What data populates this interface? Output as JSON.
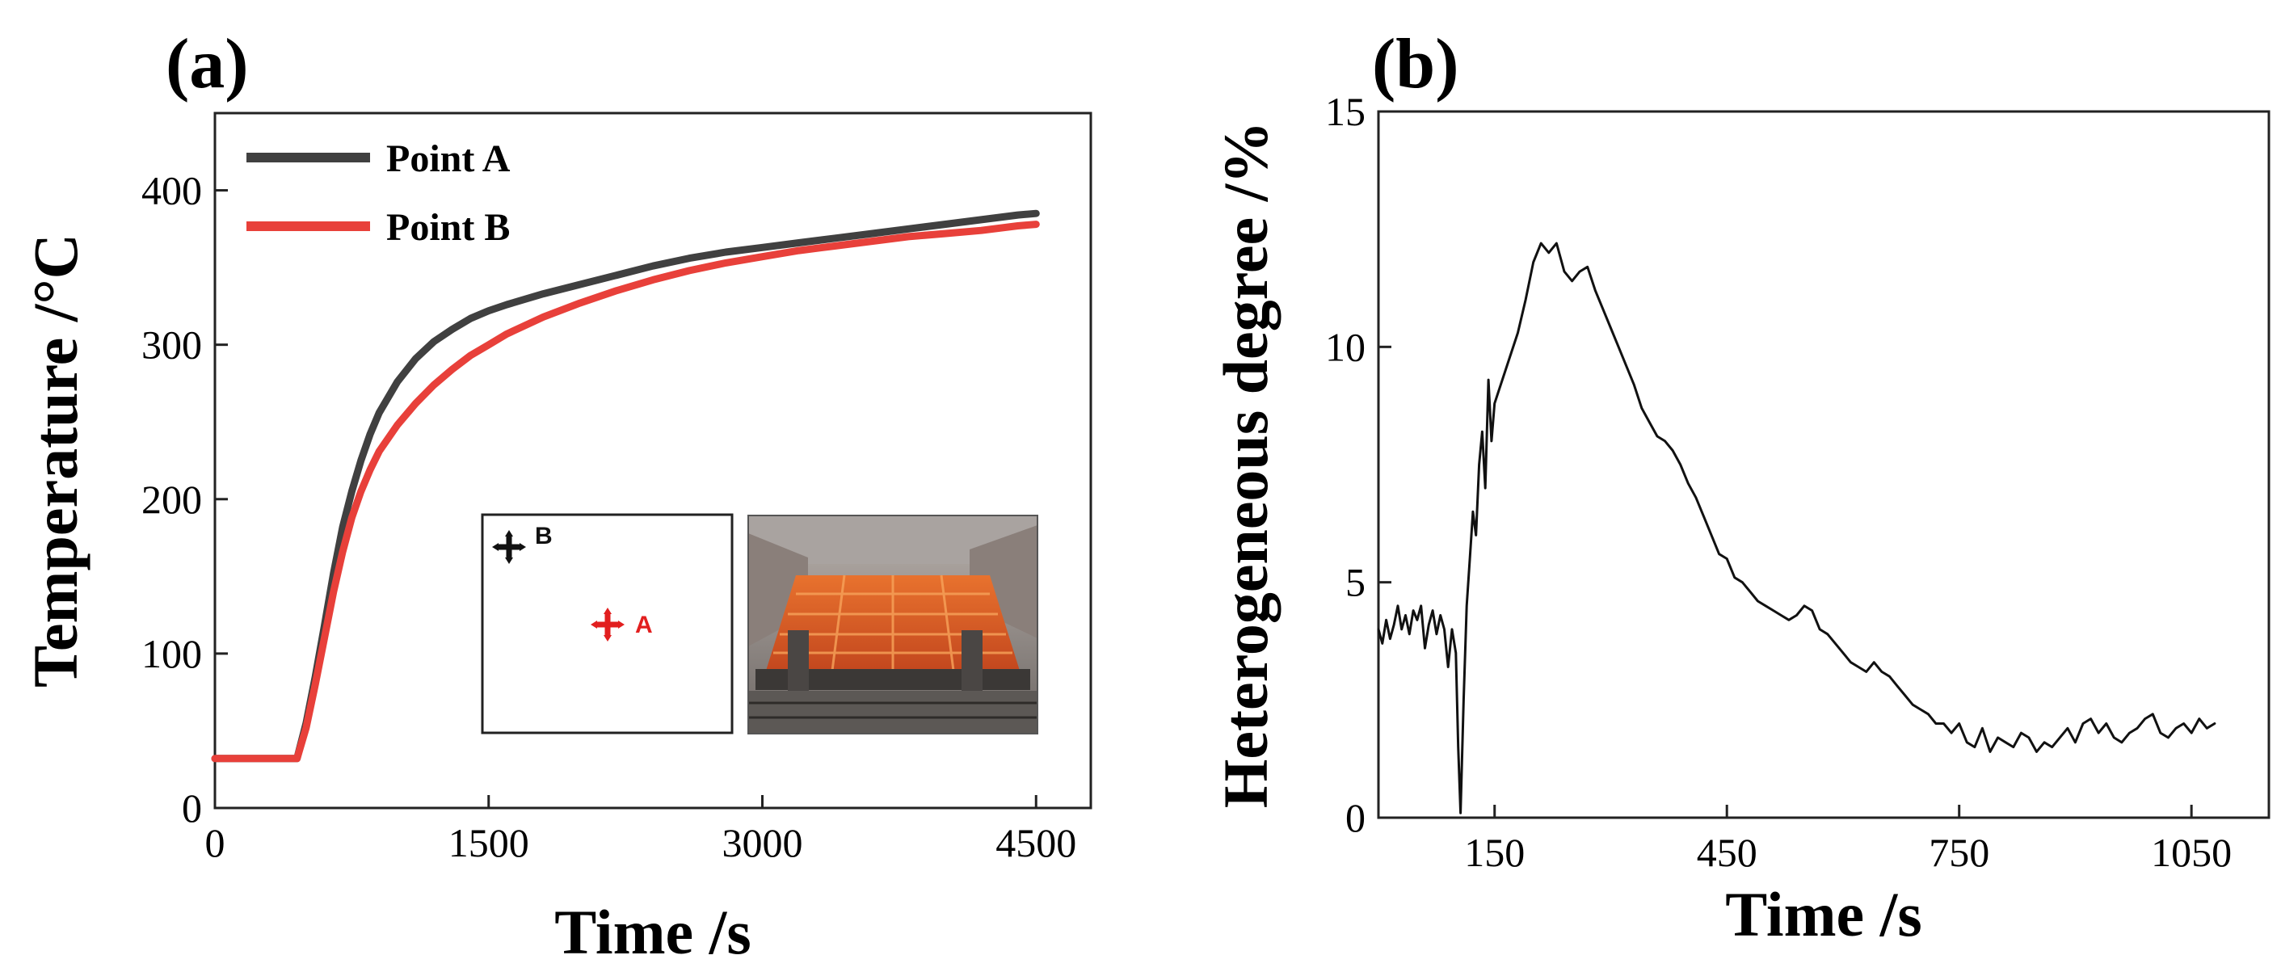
{
  "panels": {
    "a": {
      "label": "(a)"
    },
    "b": {
      "label": "(b)"
    }
  },
  "chart_data": [
    {
      "panel": "(a)",
      "type": "line",
      "xlabel": "Time /s",
      "ylabel": "Temperature /°C",
      "xlim": [
        0,
        4800
      ],
      "ylim": [
        0,
        450
      ],
      "xticks": [
        0,
        1500,
        3000,
        4500
      ],
      "yticks": [
        0,
        100,
        200,
        300,
        400
      ],
      "grid": false,
      "legend": {
        "placement": "top-left"
      },
      "series": [
        {
          "name": "Point A",
          "color": "#404040",
          "points": [
            [
              0,
              32
            ],
            [
              100,
              32
            ],
            [
              200,
              32
            ],
            [
              300,
              32
            ],
            [
              400,
              32
            ],
            [
              450,
              32
            ],
            [
              500,
              55
            ],
            [
              550,
              85
            ],
            [
              600,
              118
            ],
            [
              650,
              152
            ],
            [
              700,
              182
            ],
            [
              750,
              205
            ],
            [
              800,
              225
            ],
            [
              850,
              242
            ],
            [
              900,
              256
            ],
            [
              1000,
              276
            ],
            [
              1100,
              291
            ],
            [
              1200,
              302
            ],
            [
              1300,
              310
            ],
            [
              1400,
              317
            ],
            [
              1500,
              322
            ],
            [
              1600,
              326
            ],
            [
              1800,
              333
            ],
            [
              2000,
              339
            ],
            [
              2200,
              345
            ],
            [
              2400,
              351
            ],
            [
              2600,
              356
            ],
            [
              2800,
              360
            ],
            [
              3000,
              363
            ],
            [
              3200,
              366
            ],
            [
              3400,
              369
            ],
            [
              3600,
              372
            ],
            [
              3800,
              375
            ],
            [
              4000,
              378
            ],
            [
              4200,
              381
            ],
            [
              4400,
              384
            ],
            [
              4500,
              385
            ]
          ]
        },
        {
          "name": "Point B",
          "color": "#e8403a",
          "points": [
            [
              0,
              32
            ],
            [
              100,
              32
            ],
            [
              200,
              32
            ],
            [
              300,
              32
            ],
            [
              400,
              32
            ],
            [
              450,
              32
            ],
            [
              500,
              52
            ],
            [
              550,
              80
            ],
            [
              600,
              110
            ],
            [
              650,
              140
            ],
            [
              700,
              166
            ],
            [
              750,
              188
            ],
            [
              800,
              205
            ],
            [
              850,
              219
            ],
            [
              900,
              231
            ],
            [
              1000,
              248
            ],
            [
              1100,
              262
            ],
            [
              1200,
              274
            ],
            [
              1300,
              284
            ],
            [
              1400,
              293
            ],
            [
              1500,
              300
            ],
            [
              1600,
              307
            ],
            [
              1800,
              318
            ],
            [
              2000,
              327
            ],
            [
              2200,
              335
            ],
            [
              2400,
              342
            ],
            [
              2600,
              348
            ],
            [
              2800,
              353
            ],
            [
              3000,
              357
            ],
            [
              3200,
              361
            ],
            [
              3400,
              364
            ],
            [
              3600,
              367
            ],
            [
              3800,
              370
            ],
            [
              4000,
              372
            ],
            [
              4200,
              374
            ],
            [
              4400,
              377
            ],
            [
              4500,
              378
            ]
          ]
        }
      ],
      "inset": {
        "schematic_markers": [
          {
            "text": "B",
            "color": "#111111"
          },
          {
            "text": "A",
            "color": "#e21f1f"
          }
        ]
      }
    },
    {
      "panel": "(b)",
      "type": "line",
      "xlabel": "Time /s",
      "ylabel": "Heterogeneous degree /%",
      "xlim": [
        0,
        1150
      ],
      "ylim": [
        0,
        15
      ],
      "xticks": [
        150,
        450,
        750,
        1050
      ],
      "yticks": [
        0,
        5,
        10,
        15
      ],
      "grid": false,
      "series": [
        {
          "color": "#111111",
          "points": [
            [
              0,
              4.0
            ],
            [
              5,
              3.7
            ],
            [
              10,
              4.2
            ],
            [
              15,
              3.8
            ],
            [
              20,
              4.1
            ],
            [
              25,
              4.5
            ],
            [
              30,
              4.0
            ],
            [
              35,
              4.3
            ],
            [
              40,
              3.9
            ],
            [
              45,
              4.4
            ],
            [
              50,
              4.2
            ],
            [
              55,
              4.5
            ],
            [
              60,
              3.6
            ],
            [
              65,
              4.1
            ],
            [
              70,
              4.4
            ],
            [
              75,
              3.9
            ],
            [
              80,
              4.3
            ],
            [
              85,
              4.0
            ],
            [
              90,
              3.2
            ],
            [
              95,
              4.0
            ],
            [
              100,
              3.5
            ],
            [
              103,
              1.5
            ],
            [
              106,
              0.1
            ],
            [
              110,
              2.5
            ],
            [
              114,
              4.5
            ],
            [
              118,
              5.5
            ],
            [
              122,
              6.5
            ],
            [
              126,
              6.0
            ],
            [
              130,
              7.5
            ],
            [
              134,
              8.2
            ],
            [
              138,
              7.0
            ],
            [
              142,
              9.3
            ],
            [
              146,
              8.0
            ],
            [
              150,
              8.8
            ],
            [
              160,
              9.3
            ],
            [
              170,
              9.8
            ],
            [
              180,
              10.3
            ],
            [
              190,
              11.0
            ],
            [
              200,
              11.8
            ],
            [
              210,
              12.2
            ],
            [
              220,
              12.0
            ],
            [
              230,
              12.2
            ],
            [
              240,
              11.6
            ],
            [
              250,
              11.4
            ],
            [
              260,
              11.6
            ],
            [
              270,
              11.7
            ],
            [
              280,
              11.2
            ],
            [
              290,
              10.8
            ],
            [
              300,
              10.4
            ],
            [
              310,
              10.0
            ],
            [
              320,
              9.6
            ],
            [
              330,
              9.2
            ],
            [
              340,
              8.7
            ],
            [
              350,
              8.4
            ],
            [
              360,
              8.1
            ],
            [
              370,
              8.0
            ],
            [
              380,
              7.8
            ],
            [
              390,
              7.5
            ],
            [
              400,
              7.1
            ],
            [
              410,
              6.8
            ],
            [
              420,
              6.4
            ],
            [
              430,
              6.0
            ],
            [
              440,
              5.6
            ],
            [
              450,
              5.5
            ],
            [
              460,
              5.1
            ],
            [
              470,
              5.0
            ],
            [
              480,
              4.8
            ],
            [
              490,
              4.6
            ],
            [
              500,
              4.5
            ],
            [
              510,
              4.4
            ],
            [
              520,
              4.3
            ],
            [
              530,
              4.2
            ],
            [
              540,
              4.3
            ],
            [
              550,
              4.5
            ],
            [
              560,
              4.4
            ],
            [
              570,
              4.0
            ],
            [
              580,
              3.9
            ],
            [
              590,
              3.7
            ],
            [
              600,
              3.5
            ],
            [
              610,
              3.3
            ],
            [
              620,
              3.2
            ],
            [
              630,
              3.1
            ],
            [
              640,
              3.3
            ],
            [
              650,
              3.1
            ],
            [
              660,
              3.0
            ],
            [
              670,
              2.8
            ],
            [
              680,
              2.6
            ],
            [
              690,
              2.4
            ],
            [
              700,
              2.3
            ],
            [
              710,
              2.2
            ],
            [
              720,
              2.0
            ],
            [
              730,
              2.0
            ],
            [
              740,
              1.8
            ],
            [
              750,
              2.0
            ],
            [
              760,
              1.6
            ],
            [
              770,
              1.5
            ],
            [
              780,
              1.9
            ],
            [
              790,
              1.4
            ],
            [
              800,
              1.7
            ],
            [
              810,
              1.6
            ],
            [
              820,
              1.5
            ],
            [
              830,
              1.8
            ],
            [
              840,
              1.7
            ],
            [
              850,
              1.4
            ],
            [
              860,
              1.6
            ],
            [
              870,
              1.5
            ],
            [
              880,
              1.7
            ],
            [
              890,
              1.9
            ],
            [
              900,
              1.6
            ],
            [
              910,
              2.0
            ],
            [
              920,
              2.1
            ],
            [
              930,
              1.8
            ],
            [
              940,
              2.0
            ],
            [
              950,
              1.7
            ],
            [
              960,
              1.6
            ],
            [
              970,
              1.8
            ],
            [
              980,
              1.9
            ],
            [
              990,
              2.1
            ],
            [
              1000,
              2.2
            ],
            [
              1010,
              1.8
            ],
            [
              1020,
              1.7
            ],
            [
              1030,
              1.9
            ],
            [
              1040,
              2.0
            ],
            [
              1050,
              1.8
            ],
            [
              1060,
              2.1
            ],
            [
              1070,
              1.9
            ],
            [
              1080,
              2.0
            ]
          ]
        }
      ]
    }
  ]
}
